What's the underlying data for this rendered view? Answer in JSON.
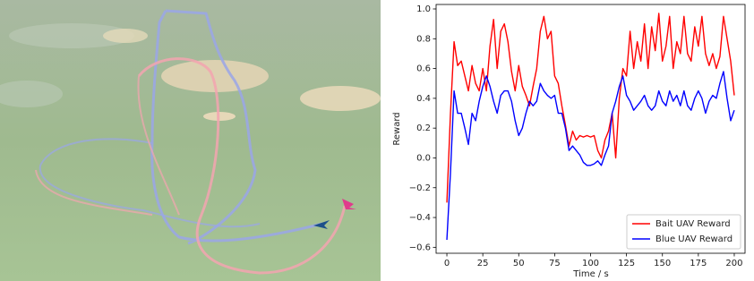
{
  "chart_data": {
    "type": "line",
    "xlabel": "Time / s",
    "ylabel": "Reward",
    "x": [
      0,
      2.5,
      5,
      7.5,
      10,
      12.5,
      15,
      17.5,
      20,
      22.5,
      25,
      27.5,
      30,
      32.5,
      35,
      37.5,
      40,
      42.5,
      45,
      47.5,
      50,
      52.5,
      55,
      57.5,
      60,
      62.5,
      65,
      67.5,
      70,
      72.5,
      75,
      77.5,
      80,
      82.5,
      85,
      87.5,
      90,
      92.5,
      95,
      97.5,
      100,
      102.5,
      105,
      107.5,
      110,
      112.5,
      115,
      117.5,
      120,
      122.5,
      125,
      127.5,
      130,
      132.5,
      135,
      137.5,
      140,
      142.5,
      145,
      147.5,
      150,
      152.5,
      155,
      157.5,
      160,
      162.5,
      165,
      167.5,
      170,
      172.5,
      175,
      177.5,
      180,
      182.5,
      185,
      187.5,
      190,
      192.5,
      195,
      197.5,
      200
    ],
    "series": [
      {
        "name": "Bait UAV Reward",
        "color": "#ff0000",
        "values": [
          -0.3,
          0.3,
          0.78,
          0.62,
          0.65,
          0.55,
          0.45,
          0.62,
          0.5,
          0.45,
          0.6,
          0.45,
          0.75,
          0.93,
          0.6,
          0.85,
          0.9,
          0.78,
          0.58,
          0.45,
          0.62,
          0.48,
          0.42,
          0.35,
          0.48,
          0.6,
          0.85,
          0.95,
          0.8,
          0.85,
          0.55,
          0.5,
          0.35,
          0.22,
          0.08,
          0.18,
          0.12,
          0.15,
          0.14,
          0.15,
          0.14,
          0.15,
          0.05,
          0.0,
          0.12,
          0.18,
          0.3,
          0.0,
          0.4,
          0.6,
          0.55,
          0.85,
          0.6,
          0.78,
          0.65,
          0.9,
          0.6,
          0.88,
          0.72,
          0.97,
          0.65,
          0.75,
          0.95,
          0.6,
          0.78,
          0.7,
          0.95,
          0.7,
          0.65,
          0.88,
          0.75,
          0.95,
          0.7,
          0.62,
          0.7,
          0.6,
          0.68,
          0.95,
          0.8,
          0.65,
          0.42
        ]
      },
      {
        "name": "Blue UAV Reward",
        "color": "#0000ff",
        "values": [
          -0.55,
          -0.1,
          0.45,
          0.3,
          0.3,
          0.2,
          0.09,
          0.3,
          0.25,
          0.38,
          0.48,
          0.55,
          0.48,
          0.38,
          0.3,
          0.42,
          0.45,
          0.45,
          0.38,
          0.25,
          0.15,
          0.2,
          0.3,
          0.38,
          0.35,
          0.38,
          0.5,
          0.45,
          0.42,
          0.4,
          0.42,
          0.3,
          0.3,
          0.2,
          0.05,
          0.08,
          0.05,
          0.02,
          -0.03,
          -0.05,
          -0.05,
          -0.04,
          -0.02,
          -0.05,
          0.02,
          0.08,
          0.3,
          0.38,
          0.48,
          0.55,
          0.42,
          0.38,
          0.32,
          0.35,
          0.38,
          0.42,
          0.35,
          0.32,
          0.35,
          0.45,
          0.38,
          0.35,
          0.45,
          0.38,
          0.42,
          0.35,
          0.45,
          0.35,
          0.32,
          0.4,
          0.45,
          0.4,
          0.3,
          0.38,
          0.42,
          0.4,
          0.5,
          0.58,
          0.4,
          0.25,
          0.32
        ]
      }
    ],
    "xlim": [
      -7.5,
      207.5
    ],
    "xticks": [
      0,
      25,
      50,
      75,
      100,
      125,
      150,
      175,
      200
    ],
    "ylim": [
      -0.64,
      1.03
    ],
    "yticks": [
      {
        "value": -0.6,
        "label": "−0.6"
      },
      {
        "value": -0.4,
        "label": "−0.4"
      },
      {
        "value": -0.2,
        "label": "−0.2"
      },
      {
        "value": 0,
        "label": "0.0"
      },
      0.2,
      0.4,
      0.6,
      0.8,
      {
        "value": 1,
        "label": "1.0"
      }
    ],
    "legend": "lower right"
  }
}
